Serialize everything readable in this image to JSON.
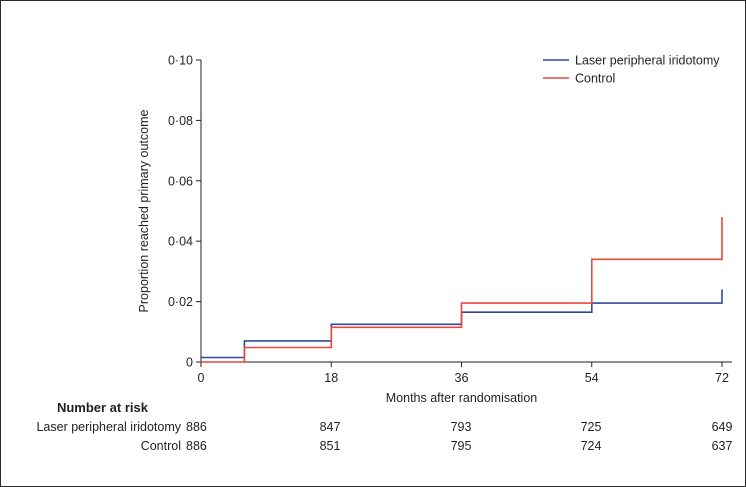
{
  "chart_data": {
    "type": "line",
    "subtype": "kaplan-meier-step",
    "ylabel": "Proportion reached primary outcome",
    "xlabel": "Months after randomisation",
    "ylim": [
      0,
      0.1
    ],
    "xlim": [
      0,
      72
    ],
    "y_ticks": [
      0,
      0.02,
      0.04,
      0.06,
      0.08,
      0.1
    ],
    "y_tick_labels": [
      "0",
      "0·02",
      "0·04",
      "0·06",
      "0·08",
      "0·10"
    ],
    "x_ticks": [
      0,
      18,
      36,
      54,
      72
    ],
    "x_tick_labels": [
      "0",
      "18",
      "36",
      "54",
      "72"
    ],
    "grid": false,
    "legend_position": "top-right",
    "series": [
      {
        "name": "Laser peripheral iridotomy",
        "color": "#2e4b9a",
        "points": [
          [
            0,
            0.0015
          ],
          [
            6,
            0.0015
          ],
          [
            6,
            0.007
          ],
          [
            18,
            0.007
          ],
          [
            18,
            0.0125
          ],
          [
            36,
            0.0125
          ],
          [
            36,
            0.0165
          ],
          [
            54,
            0.0165
          ],
          [
            54,
            0.0195
          ],
          [
            72,
            0.0195
          ],
          [
            72,
            0.024
          ]
        ]
      },
      {
        "name": "Control",
        "color": "#e8493d",
        "points": [
          [
            0,
            0
          ],
          [
            6,
            0
          ],
          [
            6,
            0.0048
          ],
          [
            18,
            0.0048
          ],
          [
            18,
            0.0115
          ],
          [
            36,
            0.0115
          ],
          [
            36,
            0.0195
          ],
          [
            54,
            0.0195
          ],
          [
            54,
            0.034
          ],
          [
            72,
            0.034
          ],
          [
            72,
            0.048
          ]
        ]
      }
    ]
  },
  "risk_table": {
    "title": "Number at risk",
    "rows": [
      {
        "label": "Laser peripheral iridotomy",
        "values": [
          "886",
          "847",
          "793",
          "725",
          "649"
        ]
      },
      {
        "label": "Control",
        "values": [
          "886",
          "851",
          "795",
          "724",
          "637"
        ]
      }
    ]
  }
}
